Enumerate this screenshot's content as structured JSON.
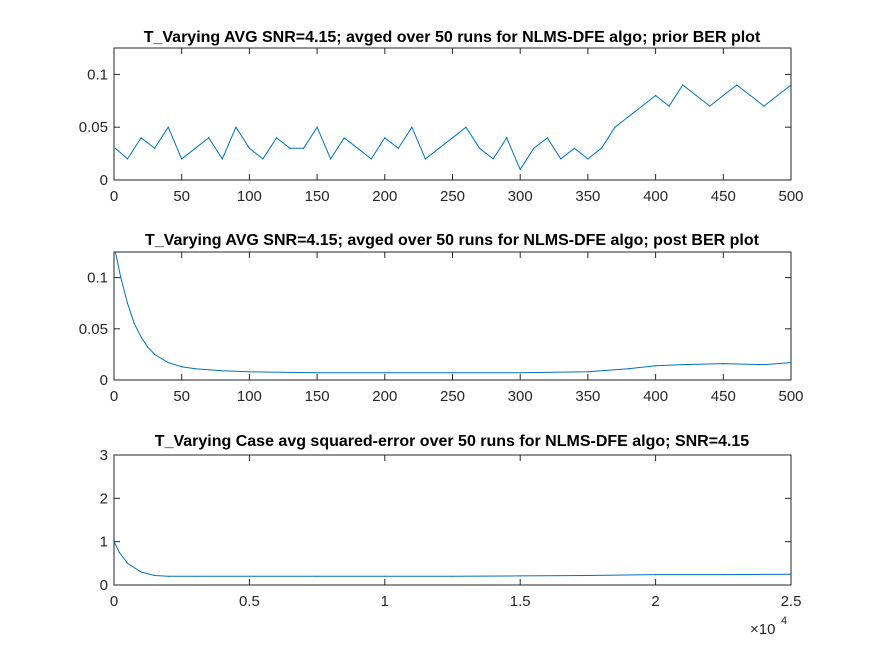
{
  "figure": {
    "background": "#ffffff",
    "series_color": "#0072BD"
  },
  "chart_data": [
    {
      "type": "line",
      "title": "T_Varying AVG SNR=4.15; avged over 50 runs for NLMS-DFE algo; prior BER plot",
      "xlabel": "",
      "ylabel": "",
      "xlim": [
        0,
        500
      ],
      "ylim": [
        0,
        0.125
      ],
      "xticks": [
        0,
        50,
        100,
        150,
        200,
        250,
        300,
        350,
        400,
        450,
        500
      ],
      "yticks": [
        0,
        0.05,
        0.1
      ],
      "xtick_labels": [
        "0",
        "50",
        "100",
        "150",
        "200",
        "250",
        "300",
        "350",
        "400",
        "450",
        "500"
      ],
      "ytick_labels": [
        "0",
        "0.05",
        "0.1"
      ],
      "grid": false,
      "series": [
        {
          "color": "#0072BD",
          "x": [
            1,
            10,
            20,
            30,
            40,
            50,
            60,
            70,
            80,
            90,
            100,
            110,
            120,
            130,
            140,
            150,
            160,
            170,
            180,
            190,
            200,
            210,
            220,
            230,
            240,
            250,
            260,
            270,
            280,
            290,
            300,
            310,
            320,
            330,
            340,
            350,
            360,
            370,
            380,
            390,
            400,
            410,
            420,
            430,
            440,
            450,
            460,
            470,
            480,
            490,
            500
          ],
          "y": [
            0.03,
            0.02,
            0.04,
            0.03,
            0.05,
            0.02,
            0.03,
            0.04,
            0.02,
            0.05,
            0.03,
            0.02,
            0.04,
            0.03,
            0.03,
            0.05,
            0.02,
            0.04,
            0.03,
            0.02,
            0.04,
            0.03,
            0.05,
            0.02,
            0.03,
            0.04,
            0.05,
            0.03,
            0.02,
            0.04,
            0.01,
            0.03,
            0.04,
            0.02,
            0.03,
            0.02,
            0.03,
            0.05,
            0.06,
            0.07,
            0.08,
            0.07,
            0.09,
            0.08,
            0.07,
            0.08,
            0.09,
            0.08,
            0.07,
            0.08,
            0.09
          ]
        }
      ]
    },
    {
      "type": "line",
      "title": "T_Varying AVG SNR=4.15; avged over 50 runs for NLMS-DFE algo; post BER plot",
      "xlabel": "",
      "ylabel": "",
      "xlim": [
        0,
        500
      ],
      "ylim": [
        0,
        0.125
      ],
      "xticks": [
        0,
        50,
        100,
        150,
        200,
        250,
        300,
        350,
        400,
        450,
        500
      ],
      "yticks": [
        0,
        0.05,
        0.1
      ],
      "xtick_labels": [
        "0",
        "50",
        "100",
        "150",
        "200",
        "250",
        "300",
        "350",
        "400",
        "450",
        "500"
      ],
      "ytick_labels": [
        "0",
        "0.05",
        "0.1"
      ],
      "grid": false,
      "series": [
        {
          "color": "#0072BD",
          "x": [
            1,
            5,
            10,
            15,
            20,
            25,
            30,
            40,
            50,
            60,
            80,
            100,
            150,
            200,
            250,
            300,
            350,
            380,
            400,
            420,
            450,
            480,
            500
          ],
          "y": [
            0.125,
            0.1,
            0.075,
            0.055,
            0.042,
            0.032,
            0.025,
            0.017,
            0.013,
            0.011,
            0.009,
            0.008,
            0.007,
            0.007,
            0.007,
            0.007,
            0.008,
            0.011,
            0.014,
            0.015,
            0.016,
            0.015,
            0.017
          ]
        }
      ]
    },
    {
      "type": "line",
      "title": "T_Varying Case avg squared-error over 50 runs for NLMS-DFE algo; SNR=4.15",
      "xlabel": "",
      "ylabel": "",
      "xlim": [
        0,
        25000
      ],
      "ylim": [
        0,
        3
      ],
      "xticks": [
        0,
        5000,
        10000,
        15000,
        20000,
        25000
      ],
      "yticks": [
        0,
        1,
        2,
        3
      ],
      "xtick_labels": [
        "0",
        "0.5",
        "1",
        "1.5",
        "2",
        "2.5"
      ],
      "ytick_labels": [
        "0",
        "1",
        "2",
        "3"
      ],
      "x_exponent_label": "×10",
      "x_exponent_power": "4",
      "grid": false,
      "series": [
        {
          "color": "#0072BD",
          "x": [
            0,
            200,
            500,
            1000,
            1500,
            2000,
            3000,
            5000,
            7500,
            10000,
            12500,
            15000,
            17500,
            20000,
            22500,
            25000
          ],
          "y": [
            1.0,
            0.75,
            0.5,
            0.3,
            0.22,
            0.2,
            0.2,
            0.2,
            0.2,
            0.2,
            0.2,
            0.21,
            0.22,
            0.24,
            0.24,
            0.25
          ]
        }
      ]
    }
  ]
}
